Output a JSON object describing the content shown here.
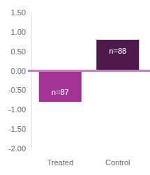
{
  "chart_data": {
    "type": "bar",
    "categories": [
      "Treated",
      "Control"
    ],
    "values": [
      -0.8,
      0.8
    ],
    "colors": [
      "#a23393",
      "#4e1a4b"
    ],
    "annotations": [
      "n=87",
      "n=88"
    ],
    "ylim": [
      -2,
      1.5
    ],
    "yticks": [
      {
        "value": -2,
        "label": "-2.00"
      },
      {
        "value": -1.5,
        "label": "-1.50"
      },
      {
        "value": -1,
        "label": "-1.00"
      },
      {
        "value": -0.5,
        "label": "-0.50"
      },
      {
        "value": 0,
        "label": "0.00"
      },
      {
        "value": 0.5,
        "label": "0.50"
      },
      {
        "value": 1,
        "label": "1.00"
      },
      {
        "value": 1.5,
        "label": "1.50"
      }
    ],
    "grid": false
  }
}
